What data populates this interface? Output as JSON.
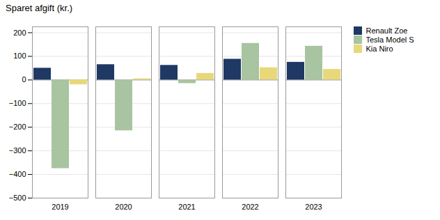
{
  "chart_data": {
    "type": "bar",
    "title": "Sparet afgift (kr.)",
    "categories": [
      "2019",
      "2020",
      "2021",
      "2022",
      "2023"
    ],
    "series": [
      {
        "name": "Renault Zoe",
        "color": "#1f3864",
        "values": [
          50,
          65,
          62,
          88,
          75
        ]
      },
      {
        "name": "Tesla Model S",
        "color": "#a9c4a0",
        "values": [
          -375,
          -215,
          -15,
          155,
          143
        ]
      },
      {
        "name": "Kia Niro",
        "color": "#e8d87a",
        "values": [
          -20,
          5,
          28,
          52,
          45
        ]
      }
    ],
    "ylim": [
      -500,
      225
    ],
    "yticks": [
      -500,
      -400,
      -300,
      -200,
      -100,
      0,
      100,
      200
    ],
    "grid": true,
    "legend": "right"
  }
}
